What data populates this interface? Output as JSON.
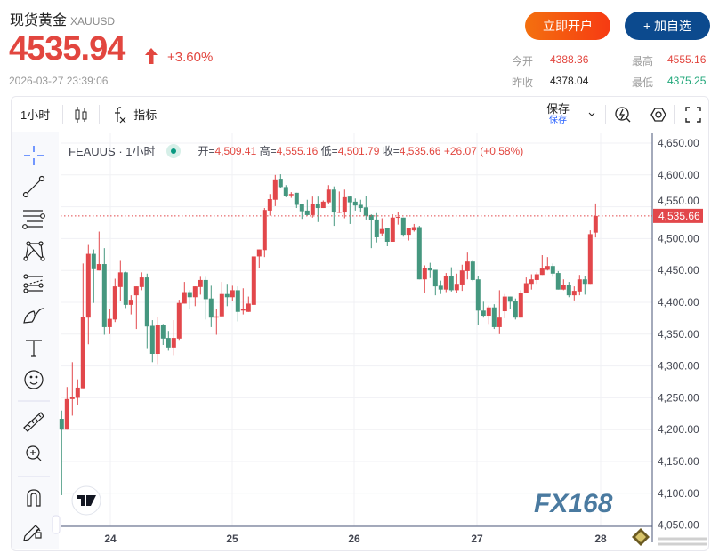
{
  "header": {
    "name": "现货黄金",
    "symbol": "XAUUSD",
    "price": "4535.94",
    "change_pct": "+3.60%",
    "timestamp": "2026-03-27 23:39:06",
    "open_account": "立即开户",
    "add_watch": "+ 加自选"
  },
  "stats": {
    "open_label": "今开",
    "open": "4388.36",
    "prev_label": "昨收",
    "prev": "4378.04",
    "high_label": "最高",
    "high": "4555.16",
    "low_label": "最低",
    "low": "4375.25"
  },
  "toolbar": {
    "interval": "1小时",
    "indicators": "指标",
    "save": "保存",
    "save_sub": "保存"
  },
  "legend": {
    "title": "FEAUUS · 1小时",
    "o_label": "开=",
    "o": "4,509.41",
    "h_label": "高=",
    "h": "4,555.16",
    "l_label": "低=",
    "l": "4,501.79",
    "c_label": "收=",
    "c": "4,535.66",
    "chg": "+26.07 (+0.58%)"
  },
  "watermark": "FX168",
  "colors": {
    "up": "#e2474b",
    "down": "#45977f",
    "accent": "#2962ff"
  },
  "chart_data": {
    "type": "candlestick",
    "x_ticks": [
      "24",
      "25",
      "26",
      "27",
      "28"
    ],
    "y_ticks": [
      "4,650.00",
      "4,600.00",
      "4,550.00",
      "4,500.00",
      "4,450.00",
      "4,400.00",
      "4,350.00",
      "4,300.00",
      "4,250.00",
      "4,200.00",
      "4,150.00",
      "4,100.00",
      "4,050.00"
    ],
    "ylim": [
      4050,
      4650
    ],
    "last_price": "4,535.66",
    "ohlc": [
      [
        4217,
        4230,
        4097,
        4200
      ],
      [
        4200,
        4267,
        4200,
        4248
      ],
      [
        4248,
        4306,
        4222,
        4251
      ],
      [
        4250,
        4279,
        4238,
        4266
      ],
      [
        4265,
        4461,
        4265,
        4377
      ],
      [
        4376,
        4490,
        4334,
        4476
      ],
      [
        4476,
        4483,
        4399,
        4452
      ],
      [
        4450,
        4511,
        4450,
        4460
      ],
      [
        4460,
        4485,
        4349,
        4361
      ],
      [
        4361,
        4390,
        4350,
        4374
      ],
      [
        4373,
        4437,
        4369,
        4425
      ],
      [
        4424,
        4465,
        4402,
        4447
      ],
      [
        4447,
        4448,
        4391,
        4396
      ],
      [
        4396,
        4411,
        4381,
        4404
      ],
      [
        4411,
        4425,
        4358,
        4425
      ],
      [
        4424,
        4447,
        4419,
        4439
      ],
      [
        4439,
        4445,
        4328,
        4362
      ],
      [
        4363,
        4372,
        4306,
        4319
      ],
      [
        4319,
        4377,
        4303,
        4364
      ],
      [
        4364,
        4366,
        4333,
        4343
      ],
      [
        4344,
        4355,
        4324,
        4329
      ],
      [
        4329,
        4372,
        4317,
        4344
      ],
      [
        4343,
        4404,
        4341,
        4399
      ],
      [
        4398,
        4432,
        4398,
        4416
      ],
      [
        4416,
        4419,
        4390,
        4408
      ],
      [
        4408,
        4425,
        4394,
        4425
      ],
      [
        4424,
        4440,
        4412,
        4435
      ],
      [
        4435,
        4440,
        4373,
        4405
      ],
      [
        4406,
        4426,
        4361,
        4376
      ],
      [
        4376,
        4389,
        4349,
        4378
      ],
      [
        4378,
        4432,
        4378,
        4413
      ],
      [
        4413,
        4429,
        4394,
        4408
      ],
      [
        4408,
        4426,
        4402,
        4419
      ],
      [
        4419,
        4425,
        4370,
        4385
      ],
      [
        4387,
        4422,
        4381,
        4389
      ],
      [
        4385,
        4409,
        4385,
        4398
      ],
      [
        4396,
        4472,
        4396,
        4472
      ],
      [
        4472,
        4483,
        4454,
        4483
      ],
      [
        4482,
        4548,
        4471,
        4545
      ],
      [
        4544,
        4570,
        4536,
        4562
      ],
      [
        4561,
        4600,
        4551,
        4593
      ],
      [
        4594,
        4601,
        4579,
        4581
      ],
      [
        4581,
        4584,
        4565,
        4567
      ],
      [
        4568,
        4573,
        4564,
        4570
      ],
      [
        4572,
        4572,
        4548,
        4553
      ],
      [
        4555,
        4555,
        4531,
        4543
      ],
      [
        4544,
        4561,
        4536,
        4537
      ],
      [
        4537,
        4566,
        4533,
        4555
      ],
      [
        4555,
        4566,
        4526,
        4548
      ],
      [
        4548,
        4560,
        4548,
        4558
      ],
      [
        4557,
        4584,
        4555,
        4577
      ],
      [
        4577,
        4582,
        4520,
        4541
      ],
      [
        4541,
        4574,
        4540,
        4542
      ],
      [
        4541,
        4577,
        4532,
        4565
      ],
      [
        4566,
        4567,
        4523,
        4557
      ],
      [
        4558,
        4563,
        4544,
        4552
      ],
      [
        4553,
        4561,
        4541,
        4548
      ],
      [
        4549,
        4567,
        4530,
        4536
      ],
      [
        4537,
        4538,
        4485,
        4529
      ],
      [
        4530,
        4540,
        4494,
        4502
      ],
      [
        4508,
        4532,
        4504,
        4515
      ],
      [
        4516,
        4517,
        4488,
        4495
      ],
      [
        4495,
        4538,
        4495,
        4533
      ],
      [
        4533,
        4542,
        4522,
        4534
      ],
      [
        4533,
        4533,
        4503,
        4506
      ],
      [
        4506,
        4516,
        4497,
        4516
      ],
      [
        4513,
        4523,
        4511,
        4518
      ],
      [
        4518,
        4520,
        4436,
        4436
      ],
      [
        4436,
        4458,
        4414,
        4454
      ],
      [
        4454,
        4462,
        4438,
        4450
      ],
      [
        4451,
        4451,
        4411,
        4425
      ],
      [
        4426,
        4434,
        4413,
        4420
      ],
      [
        4420,
        4446,
        4416,
        4441
      ],
      [
        4441,
        4455,
        4417,
        4419
      ],
      [
        4419,
        4445,
        4415,
        4429
      ],
      [
        4428,
        4459,
        4418,
        4450
      ],
      [
        4449,
        4478,
        4436,
        4464
      ],
      [
        4464,
        4467,
        4433,
        4435
      ],
      [
        4436,
        4441,
        4365,
        4387
      ],
      [
        4387,
        4401,
        4376,
        4379
      ],
      [
        4379,
        4395,
        4366,
        4392
      ],
      [
        4392,
        4397,
        4358,
        4361
      ],
      [
        4361,
        4419,
        4350,
        4376
      ],
      [
        4386,
        4413,
        4375,
        4409
      ],
      [
        4409,
        4409,
        4389,
        4401
      ],
      [
        4402,
        4406,
        4373,
        4376
      ],
      [
        4376,
        4419,
        4376,
        4415
      ],
      [
        4414,
        4439,
        4414,
        4430
      ],
      [
        4429,
        4444,
        4420,
        4436
      ],
      [
        4435,
        4447,
        4429,
        4444
      ],
      [
        4443,
        4474,
        4443,
        4453
      ],
      [
        4451,
        4471,
        4450,
        4457
      ],
      [
        4457,
        4461,
        4440,
        4445
      ],
      [
        4446,
        4449,
        4420,
        4420
      ],
      [
        4420,
        4436,
        4419,
        4427
      ],
      [
        4427,
        4432,
        4408,
        4411
      ],
      [
        4411,
        4425,
        4403,
        4418
      ],
      [
        4417,
        4443,
        4411,
        4436
      ],
      [
        4436,
        4441,
        4412,
        4429
      ],
      [
        4429,
        4513,
        4429,
        4507
      ],
      [
        4509.41,
        4555.16,
        4501.79,
        4535.66
      ]
    ]
  }
}
